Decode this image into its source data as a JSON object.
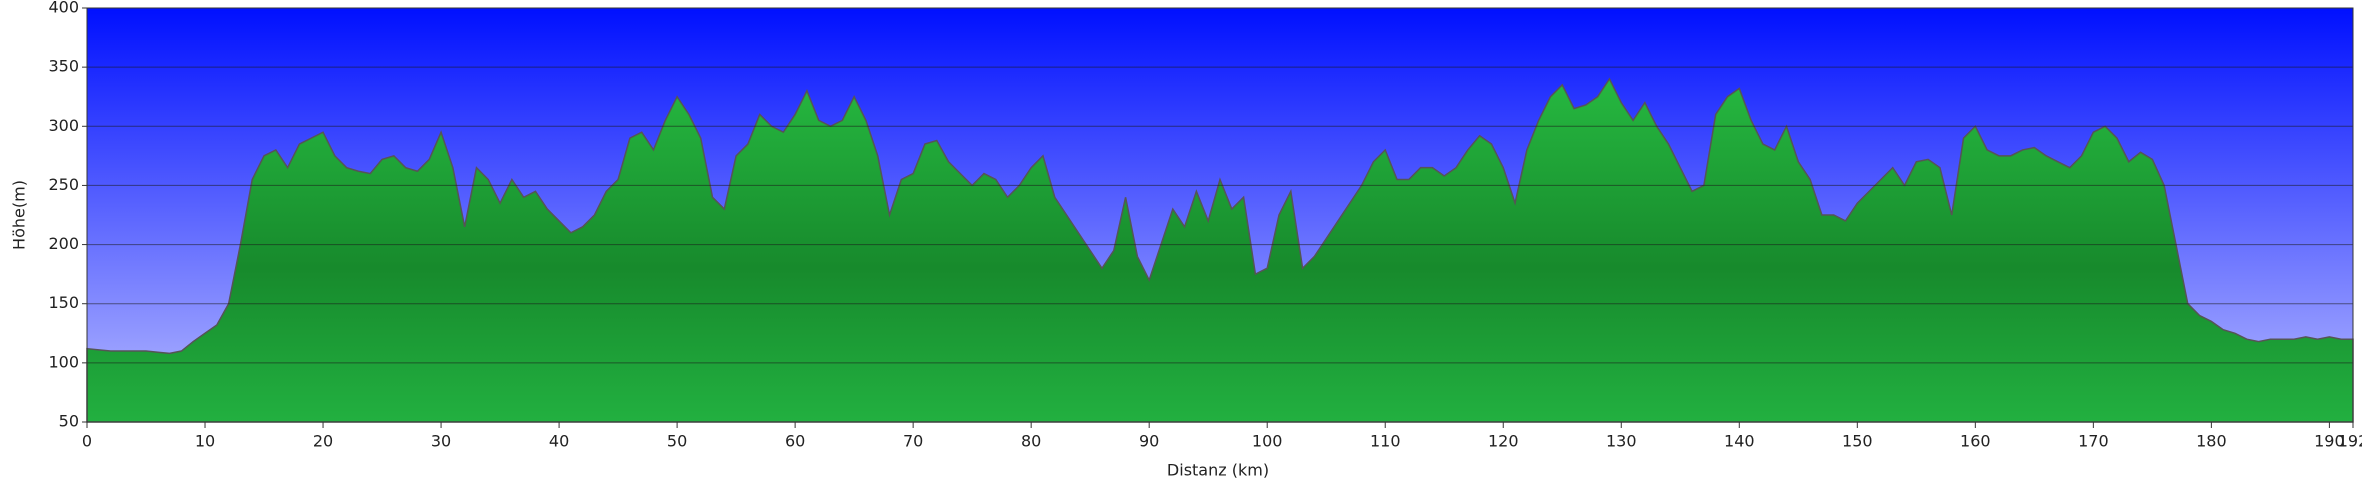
{
  "chart_data": {
    "type": "area",
    "xlabel": "Distanz   (km)",
    "ylabel": "Höhe(m)",
    "x": [
      0,
      1,
      2,
      3,
      4,
      5,
      6,
      7,
      8,
      9,
      10,
      11,
      12,
      13,
      14,
      15,
      16,
      17,
      18,
      19,
      20,
      21,
      22,
      23,
      24,
      25,
      26,
      27,
      28,
      29,
      30,
      31,
      32,
      33,
      34,
      35,
      36,
      37,
      38,
      39,
      40,
      41,
      42,
      43,
      44,
      45,
      46,
      47,
      48,
      49,
      50,
      51,
      52,
      53,
      54,
      55,
      56,
      57,
      58,
      59,
      60,
      61,
      62,
      63,
      64,
      65,
      66,
      67,
      68,
      69,
      70,
      71,
      72,
      73,
      74,
      75,
      76,
      77,
      78,
      79,
      80,
      81,
      82,
      83,
      84,
      85,
      86,
      87,
      88,
      89,
      90,
      91,
      92,
      93,
      94,
      95,
      96,
      97,
      98,
      99,
      100,
      101,
      102,
      103,
      104,
      105,
      106,
      107,
      108,
      109,
      110,
      111,
      112,
      113,
      114,
      115,
      116,
      117,
      118,
      119,
      120,
      121,
      122,
      123,
      124,
      125,
      126,
      127,
      128,
      129,
      130,
      131,
      132,
      133,
      134,
      135,
      136,
      137,
      138,
      139,
      140,
      141,
      142,
      143,
      144,
      145,
      146,
      147,
      148,
      149,
      150,
      151,
      152,
      153,
      154,
      155,
      156,
      157,
      158,
      159,
      160,
      161,
      162,
      163,
      164,
      165,
      166,
      167,
      168,
      169,
      170,
      171,
      172,
      173,
      174,
      175,
      176,
      177,
      178,
      179,
      180,
      181,
      182,
      183,
      184,
      185,
      186,
      187,
      188,
      189,
      190,
      191,
      192
    ],
    "values": [
      112,
      111,
      110,
      110,
      110,
      110,
      109,
      108,
      110,
      118,
      125,
      132,
      150,
      200,
      255,
      275,
      280,
      265,
      285,
      290,
      295,
      275,
      265,
      262,
      260,
      272,
      275,
      265,
      262,
      272,
      295,
      265,
      215,
      265,
      255,
      235,
      255,
      240,
      245,
      230,
      220,
      210,
      215,
      225,
      245,
      255,
      290,
      295,
      280,
      305,
      325,
      310,
      290,
      240,
      230,
      275,
      285,
      310,
      300,
      295,
      310,
      330,
      305,
      300,
      305,
      325,
      305,
      275,
      225,
      255,
      260,
      285,
      288,
      270,
      260,
      250,
      260,
      255,
      240,
      250,
      265,
      275,
      240,
      225,
      210,
      195,
      180,
      195,
      240,
      190,
      170,
      200,
      230,
      215,
      245,
      220,
      255,
      230,
      240,
      175,
      180,
      225,
      245,
      180,
      190,
      205,
      220,
      235,
      250,
      270,
      280,
      255,
      255,
      265,
      265,
      258,
      265,
      280,
      292,
      285,
      265,
      235,
      280,
      305,
      325,
      335,
      315,
      318,
      325,
      340,
      320,
      305,
      320,
      300,
      285,
      265,
      245,
      250,
      310,
      325,
      332,
      305,
      285,
      280,
      300,
      270,
      255,
      225,
      225,
      220,
      235,
      245,
      255,
      265,
      250,
      270,
      272,
      265,
      225,
      290,
      300,
      280,
      275,
      275,
      280,
      282,
      275,
      270,
      265,
      275,
      295,
      300,
      290,
      270,
      278,
      272,
      250,
      200,
      150,
      140,
      135,
      128,
      125,
      120,
      118,
      120,
      120,
      120,
      122,
      120,
      122,
      120,
      120
    ],
    "color": "#1fa83a",
    "xlim": [
      0,
      192
    ],
    "xticks": [
      0,
      10,
      20,
      30,
      40,
      50,
      60,
      70,
      80,
      90,
      100,
      110,
      120,
      130,
      140,
      150,
      160,
      170,
      180,
      190,
      192
    ],
    "ylim": [
      50,
      400
    ],
    "yticks": [
      50,
      100,
      150,
      200,
      250,
      300,
      350,
      400
    ],
    "grid": true
  }
}
